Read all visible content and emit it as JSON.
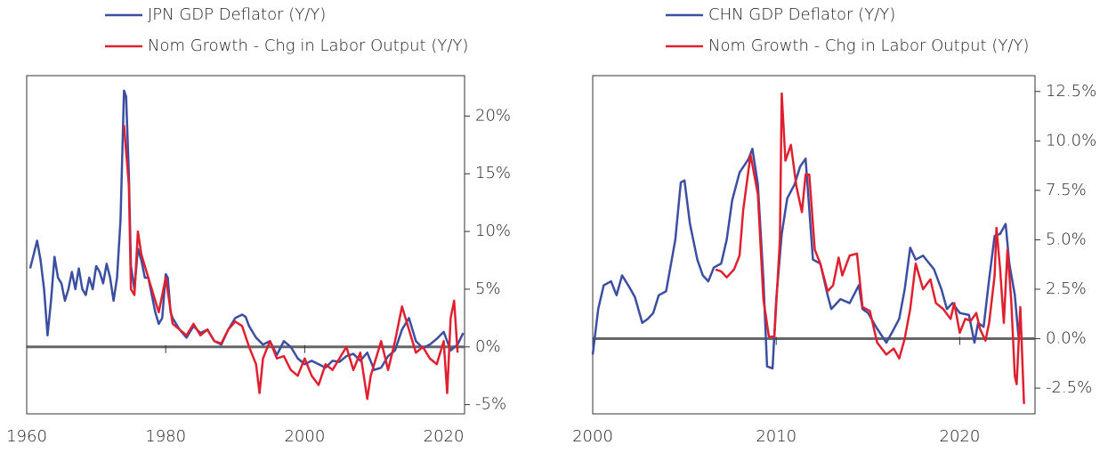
{
  "chart_data": [
    {
      "type": "line",
      "xlim": [
        1960,
        2023
      ],
      "xticks": [
        1960,
        1980,
        2000,
        2020
      ],
      "ylim": [
        -5.8,
        23.5
      ],
      "yticks": [
        {
          "value": 20,
          "label": "20%"
        },
        {
          "value": 15,
          "label": "15%"
        },
        {
          "value": 10,
          "label": "10%"
        },
        {
          "value": 5,
          "label": "5%"
        },
        {
          "value": 0,
          "label": "0%"
        },
        {
          "value": -5,
          "label": "-5%"
        }
      ],
      "series": [
        {
          "name": "JPN GDP Deflator (Y/Y)",
          "color": "#3b4ea2",
          "x": [
            1960.5,
            1961,
            1961.5,
            1962,
            1962.5,
            1963,
            1963.5,
            1964,
            1964.5,
            1965,
            1965.5,
            1966,
            1966.5,
            1967,
            1967.5,
            1968,
            1968.5,
            1969,
            1969.5,
            1970,
            1970.5,
            1971,
            1971.5,
            1972,
            1972.5,
            1973,
            1973.5,
            1974,
            1974.3,
            1974.7,
            1975,
            1975.5,
            1976,
            1976.5,
            1977,
            1977.5,
            1978,
            1978.5,
            1979,
            1979.5,
            1980,
            1980.3,
            1980.7,
            1981,
            1981.5,
            1982,
            1983,
            1984,
            1985,
            1986,
            1987,
            1988,
            1989,
            1990,
            1991,
            1991.5,
            1992,
            1993,
            1994,
            1995,
            1996,
            1997,
            1998,
            1999,
            2000,
            2001,
            2002,
            2003,
            2004,
            2005,
            2006,
            2007,
            2008,
            2009,
            2010,
            2011,
            2012,
            2013,
            2014,
            2015,
            2016,
            2017,
            2018,
            2019,
            2020,
            2021,
            2022,
            2022.8
          ],
          "values": [
            6.8,
            8.0,
            9.2,
            7.5,
            5,
            1,
            4,
            7.8,
            6,
            5.5,
            4,
            5,
            6.5,
            5,
            6.8,
            5,
            4.5,
            6,
            5,
            7,
            6.5,
            5.5,
            7.2,
            6,
            4,
            6,
            11,
            22.2,
            21.7,
            15,
            7,
            5,
            8.5,
            7.5,
            6,
            6,
            4.5,
            3,
            2,
            2.5,
            6.3,
            6,
            3,
            2.5,
            2,
            1.5,
            0.8,
            1.8,
            1.2,
            1.5,
            0.5,
            0.2,
            1.5,
            2.5,
            2.8,
            2.6,
            1.8,
            0.8,
            0.2,
            0.5,
            -0.7,
            0.5,
            0,
            -1,
            -1.5,
            -1.2,
            -1.5,
            -1.8,
            -1.2,
            -1.3,
            -0.8,
            -0.6,
            -1.2,
            -0.5,
            -2,
            -1.8,
            -0.8,
            -0.3,
            1.5,
            2.5,
            0.5,
            -0.1,
            0.2,
            0.7,
            1.3,
            -0.3,
            0.2,
            1.2
          ]
        },
        {
          "name": "Nom Growth - Chg in Labor Output (Y/Y)",
          "color": "#e0202e",
          "x": [
            1974,
            1974.7,
            1975,
            1975.5,
            1976,
            1976.5,
            1977,
            1978,
            1979,
            1980,
            1981,
            1982,
            1983,
            1984,
            1985,
            1986,
            1987,
            1988,
            1989,
            1990,
            1991,
            1992,
            1993,
            1993.5,
            1994,
            1995,
            1996,
            1997,
            1998,
            1999,
            2000,
            2001,
            2002,
            2003,
            2004,
            2005,
            2006,
            2007,
            2008,
            2009,
            2009.5,
            2010,
            2011,
            2012,
            2013,
            2014,
            2015,
            2016,
            2017,
            2018,
            2019,
            2020,
            2020.5,
            2021,
            2021.5,
            2022
          ],
          "values": [
            19.2,
            14,
            5,
            4.5,
            10,
            8,
            7,
            5,
            3,
            6,
            2,
            1.5,
            1,
            2,
            1,
            1.5,
            0.5,
            0.3,
            1.5,
            2.2,
            1.8,
            0,
            -1.5,
            -4,
            -1,
            0.5,
            -1,
            -0.8,
            -2,
            -2.5,
            -1,
            -2.5,
            -3.3,
            -1.5,
            -2,
            -1,
            0,
            -2,
            -0.5,
            -4.5,
            -2.5,
            -1.5,
            0.5,
            -2,
            0.5,
            3.5,
            1.5,
            -0.5,
            0,
            -1,
            -1.5,
            0.5,
            -4,
            2.5,
            4,
            -0.5
          ]
        }
      ]
    },
    {
      "type": "line",
      "xlim": [
        2000,
        2024.1
      ],
      "xticks": [
        2000,
        2010,
        2020
      ],
      "ylim": [
        -3.8,
        13.3
      ],
      "yticks": [
        {
          "value": 12.5,
          "label": "12.5%"
        },
        {
          "value": 10,
          "label": "10.0%"
        },
        {
          "value": 7.5,
          "label": "7.5%"
        },
        {
          "value": 5,
          "label": "5.0%"
        },
        {
          "value": 2.5,
          "label": "2.5%"
        },
        {
          "value": 0,
          "label": "0.0%"
        },
        {
          "value": -2.5,
          "label": "-2.5%"
        }
      ],
      "series": [
        {
          "name": "CHN GDP Deflator (Y/Y)",
          "color": "#3b4ea2",
          "x": [
            2000,
            2000.3,
            2000.6,
            2001,
            2001.3,
            2001.6,
            2002,
            2002.3,
            2002.7,
            2003,
            2003.3,
            2003.6,
            2004,
            2004.5,
            2004.8,
            2005,
            2005.3,
            2005.7,
            2006,
            2006.3,
            2006.6,
            2007,
            2007.3,
            2007.6,
            2008,
            2008.5,
            2008.7,
            2009,
            2009.3,
            2009.5,
            2009.8,
            2010,
            2010.3,
            2010.6,
            2011,
            2011.3,
            2011.6,
            2012,
            2012.4,
            2012.8,
            2013,
            2013.5,
            2014,
            2014.5,
            2014.7,
            2015,
            2015.5,
            2016,
            2016.3,
            2016.7,
            2017,
            2017.3,
            2017.6,
            2018,
            2018.6,
            2019,
            2019.3,
            2019.6,
            2020,
            2020.5,
            2020.8,
            2021,
            2021.3,
            2021.6,
            2021.9,
            2022.2,
            2022.5,
            2022.7,
            2023,
            2023.2
          ],
          "values": [
            -0.8,
            1.5,
            2.7,
            2.9,
            2.2,
            3.2,
            2.6,
            2.1,
            0.8,
            1,
            1.3,
            2.2,
            2.4,
            5,
            7.9,
            8,
            5.8,
            4,
            3.2,
            2.9,
            3.6,
            3.8,
            5,
            7,
            8.4,
            9.1,
            9.6,
            7.8,
            3,
            -1.4,
            -1.5,
            2,
            5.3,
            7.1,
            7.8,
            8.7,
            9.1,
            4,
            3.8,
            2.2,
            1.5,
            2,
            1.8,
            2.7,
            1.5,
            1.3,
            0.5,
            -0.2,
            0.3,
            1,
            2.5,
            4.6,
            4,
            4.2,
            3.5,
            2.5,
            1.5,
            1.8,
            1.3,
            1.2,
            -0.2,
            0.8,
            0.6,
            3,
            5.2,
            5.3,
            5.8,
            3.8,
            2.2,
            0.1
          ]
        },
        {
          "name": "Nom Growth - Chg in Labor Output (Y/Y)",
          "color": "#e0202e",
          "x": [
            2006.7,
            2007,
            2007.3,
            2007.7,
            2008,
            2008.2,
            2008.6,
            2009,
            2009.3,
            2009.6,
            2009.9,
            2010.2,
            2010.3,
            2010.5,
            2010.8,
            2011.1,
            2011.4,
            2011.6,
            2011.8,
            2012.1,
            2012.4,
            2012.8,
            2013.1,
            2013.4,
            2013.6,
            2014,
            2014.4,
            2014.7,
            2015.1,
            2015.5,
            2016,
            2016.4,
            2016.7,
            2017,
            2017.3,
            2017.6,
            2018,
            2018.4,
            2018.7,
            2019.1,
            2019.5,
            2019.7,
            2020,
            2020.3,
            2020.6,
            2020.9,
            2021.1,
            2021.4,
            2021.6,
            2021.9,
            2022,
            2022.2,
            2022.4,
            2022.6,
            2022.8,
            2023,
            2023.1,
            2023.3,
            2023.5
          ],
          "values": [
            3.5,
            3.4,
            3.1,
            3.5,
            4.2,
            6.5,
            9.3,
            7.3,
            2,
            0.1,
            0.1,
            5,
            12.4,
            9,
            9.8,
            7.7,
            6.4,
            8.3,
            8.3,
            4.5,
            3.8,
            2.4,
            2.7,
            4.1,
            3.2,
            4.2,
            4.3,
            1.6,
            1.4,
            -0.2,
            -0.8,
            -0.5,
            -1,
            0,
            1.5,
            3.8,
            2.5,
            3,
            1.8,
            1.5,
            1,
            1.8,
            0.3,
            1,
            0.9,
            1.3,
            0.5,
            -0.1,
            0.8,
            3.2,
            5.6,
            3.5,
            0.8,
            4.5,
            2,
            -1.9,
            -2.3,
            1.6,
            -3.3
          ]
        }
      ]
    }
  ]
}
